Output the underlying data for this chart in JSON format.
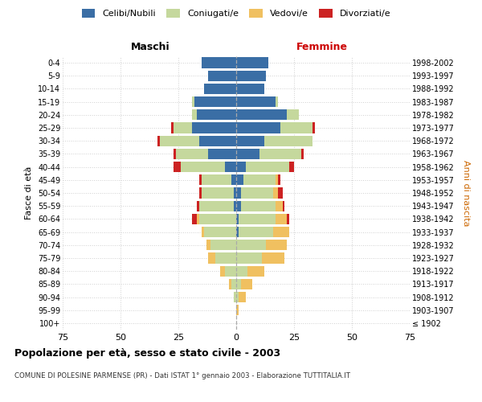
{
  "age_groups": [
    "100+",
    "95-99",
    "90-94",
    "85-89",
    "80-84",
    "75-79",
    "70-74",
    "65-69",
    "60-64",
    "55-59",
    "50-54",
    "45-49",
    "40-44",
    "35-39",
    "30-34",
    "25-29",
    "20-24",
    "15-19",
    "10-14",
    "5-9",
    "0-4"
  ],
  "birth_years": [
    "≤ 1902",
    "1903-1907",
    "1908-1912",
    "1913-1917",
    "1918-1922",
    "1923-1927",
    "1928-1932",
    "1933-1937",
    "1938-1942",
    "1943-1947",
    "1948-1952",
    "1953-1957",
    "1958-1962",
    "1963-1967",
    "1968-1972",
    "1973-1977",
    "1978-1982",
    "1983-1987",
    "1988-1992",
    "1993-1997",
    "1998-2002"
  ],
  "male": {
    "celibi": [
      0,
      0,
      0,
      0,
      0,
      0,
      0,
      0,
      0,
      1,
      1,
      2,
      5,
      12,
      16,
      19,
      17,
      18,
      14,
      12,
      15
    ],
    "coniugati": [
      0,
      0,
      1,
      2,
      5,
      9,
      11,
      14,
      16,
      15,
      14,
      13,
      19,
      14,
      17,
      8,
      2,
      1,
      0,
      0,
      0
    ],
    "vedovi": [
      0,
      0,
      0,
      1,
      2,
      3,
      2,
      1,
      1,
      0,
      0,
      0,
      0,
      0,
      0,
      0,
      0,
      0,
      0,
      0,
      0
    ],
    "divorziati": [
      0,
      0,
      0,
      0,
      0,
      0,
      0,
      0,
      2,
      1,
      1,
      1,
      3,
      1,
      1,
      1,
      0,
      0,
      0,
      0,
      0
    ]
  },
  "female": {
    "nubili": [
      0,
      0,
      0,
      0,
      0,
      0,
      0,
      1,
      1,
      2,
      2,
      3,
      4,
      10,
      12,
      19,
      22,
      17,
      12,
      13,
      14
    ],
    "coniugate": [
      0,
      0,
      1,
      2,
      5,
      11,
      13,
      15,
      16,
      15,
      14,
      14,
      19,
      18,
      21,
      14,
      5,
      1,
      0,
      0,
      0
    ],
    "vedove": [
      0,
      1,
      3,
      5,
      7,
      10,
      9,
      7,
      5,
      3,
      2,
      1,
      0,
      0,
      0,
      0,
      0,
      0,
      0,
      0,
      0
    ],
    "divorziate": [
      0,
      0,
      0,
      0,
      0,
      0,
      0,
      0,
      1,
      1,
      2,
      1,
      2,
      1,
      0,
      1,
      0,
      0,
      0,
      0,
      0
    ]
  },
  "colors": {
    "celibi": "#3a6ea5",
    "coniugati": "#c5d89d",
    "vedovi": "#f0c060",
    "divorziati": "#cc2222"
  },
  "xlim": 75,
  "title": "Popolazione per età, sesso e stato civile - 2003",
  "subtitle": "COMUNE DI POLESINE PARMENSE (PR) - Dati ISTAT 1° gennaio 2003 - Elaborazione TUTTITALIA.IT",
  "ylabel_left": "Fasce di età",
  "ylabel_right": "Anni di nascita",
  "label_maschi": "Maschi",
  "label_femmine": "Femmine",
  "legend_labels": [
    "Celibi/Nubili",
    "Coniugati/e",
    "Vedovi/e",
    "Divorziati/e"
  ],
  "bg_color": "#ffffff",
  "grid_color": "#d0d0d0"
}
